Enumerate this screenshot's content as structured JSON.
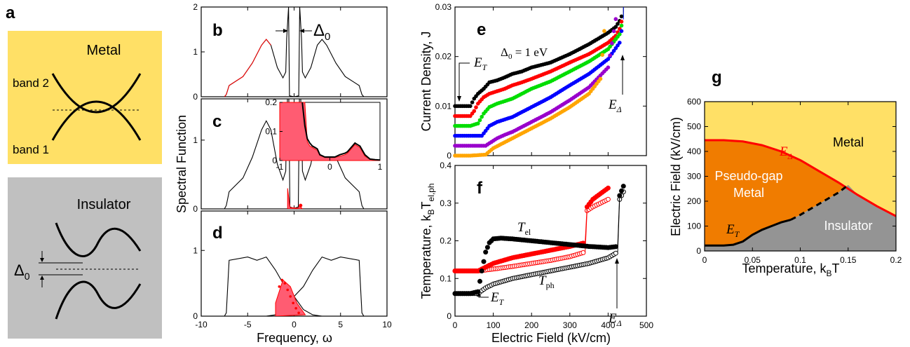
{
  "colors": {
    "metal_bg": "#ffe066",
    "insulator_bg": "#c0c0c0",
    "pseudogap": "#f07c00",
    "pg_insulator": "#949494",
    "red": "#ff0000",
    "green": "#00dd00",
    "blue": "#0000ff",
    "purple": "#9900cc",
    "orange": "#ffa500",
    "shade": "#ff5c72"
  },
  "panel_labels": {
    "a": "a",
    "b": "b",
    "c": "c",
    "d": "d",
    "e": "e",
    "f": "f",
    "g": "g"
  },
  "panel_a": {
    "metal_title": "Metal",
    "band2": "band 2",
    "band1": "band 1",
    "insulator_title": "Insulator",
    "gap_label": "Δ",
    "gap_sub": "0"
  },
  "panels_bcd": {
    "ylabel": "Spectral Function",
    "xlabel": "Frequency, ω",
    "delta_label": "Δ",
    "delta_sub": "0",
    "x_ticks": [
      "-10",
      "-5",
      "0",
      "5",
      "10"
    ],
    "y_ticks_b": [
      "0",
      "1",
      "2"
    ],
    "y_ticks_c": [
      "0",
      "1"
    ],
    "y_ticks_d": [
      "0",
      "1"
    ],
    "inset_y_ticks": [
      "0",
      "0.1",
      "0.2"
    ],
    "inset_x_ticks": [
      "-1",
      "0",
      "1"
    ]
  },
  "panel_e": {
    "ylabel": "Current Density, J",
    "annotation": "Δ",
    "annotation_sub": "0",
    "annotation_rest": " = 1 eV",
    "et_label": "E",
    "et_sub": "T",
    "ed_label": "E",
    "ed_sub": "Δ",
    "y_ticks": [
      "0",
      "0.01",
      "0.02",
      "0.03"
    ]
  },
  "panel_f": {
    "ylabel": "Temperature, k",
    "ylabel_sub": "B",
    "ylabel_rest": "T",
    "ylabel_sub2": "el,ph",
    "xlabel": "Electric Field (kV/cm)",
    "tel_label": "T",
    "tel_sub": "el",
    "tph_label": "T",
    "tph_sub": "ph",
    "et_label": "E",
    "et_sub": "T",
    "ed_label": "E",
    "ed_sub": "Δ",
    "x_ticks": [
      "0",
      "100",
      "200",
      "300",
      "400",
      "500"
    ],
    "y_ticks": [
      "0",
      "0.1",
      "0.2",
      "0.3",
      "0.4"
    ]
  },
  "panel_g": {
    "ylabel": "Electric Field (kV/cm)",
    "xlabel": "Temperature, k",
    "xlabel_sub": "B",
    "xlabel_rest": "T",
    "metal": "Metal",
    "pseudo1": "Pseudo-gap",
    "pseudo2": "Metal",
    "insulator": "Insulator",
    "ed_label": "E",
    "ed_sub": "Δ",
    "et_label": "E",
    "et_sub": "T",
    "x_ticks": [
      "0",
      "0.05",
      "0.1",
      "0.15",
      "0.2"
    ],
    "y_ticks": [
      "0",
      "100",
      "200",
      "300",
      "400",
      "500",
      "600"
    ]
  },
  "chart_data": [
    {
      "panel": "b",
      "type": "line",
      "xlabel": "Frequency, ω",
      "ylabel": "Spectral Function",
      "xlim": [
        -10,
        10
      ],
      "ylim": [
        0,
        2
      ],
      "series": [
        {
          "x": [
            -7.5,
            -7.3,
            -7.0,
            -5.5,
            -4.5,
            -3.5,
            -3.0,
            -2.5,
            -1.8,
            -1.2,
            -0.9,
            -0.8,
            -0.6,
            -0.5,
            0,
            0.5,
            0.6,
            0.8,
            0.9,
            1.2,
            1.8,
            2.5,
            3.0,
            3.5,
            4.5,
            5.5,
            7.0,
            7.3,
            7.5
          ],
          "y": [
            0,
            0.05,
            0.25,
            0.45,
            0.75,
            1.15,
            1.28,
            1.15,
            0.65,
            0.42,
            0.55,
            1.3,
            2.0,
            0.02,
            0,
            0.02,
            2.0,
            1.3,
            0.55,
            0.42,
            0.65,
            1.15,
            1.28,
            1.15,
            0.75,
            0.45,
            0.25,
            0.05,
            0
          ]
        }
      ]
    },
    {
      "panel": "c",
      "type": "line",
      "xlim": [
        -10,
        10
      ],
      "ylim": [
        0,
        1.6
      ],
      "series": [
        {
          "x": [
            -7.5,
            -7.3,
            -7.0,
            -5.5,
            -4.5,
            -3.5,
            -3.0,
            -2.5,
            -1.8,
            -1.2,
            -0.9,
            -0.8,
            -0.6,
            -0.45,
            0,
            0.45,
            0.6,
            0.8,
            0.9,
            1.2,
            1.8,
            2.5,
            3.0,
            3.5,
            4.5,
            5.5,
            7.0,
            7.3,
            7.5
          ],
          "y": [
            0,
            0.05,
            0.25,
            0.45,
            0.75,
            1.15,
            1.28,
            1.15,
            0.65,
            0.42,
            0.55,
            1.3,
            2.0,
            0.03,
            0.01,
            0.03,
            2.0,
            1.3,
            0.55,
            0.42,
            0.65,
            1.15,
            1.28,
            1.15,
            0.75,
            0.45,
            0.25,
            0.05,
            0
          ]
        }
      ],
      "inset": {
        "xlim": [
          -1,
          1
        ],
        "ylim": [
          0,
          0.2
        ],
        "series": [
          {
            "x": [
              -0.55,
              -0.5,
              -0.45,
              -0.4,
              -0.35,
              -0.3,
              -0.25,
              -0.2,
              -0.1,
              0,
              0.1,
              0.2,
              0.3,
              0.35,
              0.4,
              0.45,
              0.5,
              0.55,
              0.6,
              0.7,
              0.8,
              0.9,
              1.0
            ],
            "y": [
              0.2,
              0.12,
              0.075,
              0.06,
              0.05,
              0.045,
              0.04,
              0.02,
              0.012,
              0.012,
              0.012,
              0.02,
              0.025,
              0.03,
              0.04,
              0.05,
              0.06,
              0.055,
              0.05,
              0.02,
              0.005,
              0.003,
              0.002
            ]
          }
        ]
      }
    },
    {
      "panel": "d",
      "type": "line",
      "xlim": [
        -10,
        10
      ],
      "ylim": [
        0,
        1.6
      ],
      "series": [
        {
          "x": [
            -7.5,
            -7.3,
            -7.0,
            -5.0,
            -4.0,
            -3.0,
            -2.0,
            -1.0,
            0,
            1.0,
            2.0,
            3.0,
            4.0,
            5.0,
            7.0,
            7.3,
            7.5
          ],
          "y": [
            0,
            0.05,
            0.85,
            0.9,
            0.85,
            0.9,
            0.7,
            0.55,
            0.4,
            0.55,
            0.7,
            0.9,
            0.85,
            0.9,
            0.85,
            0.05,
            0
          ]
        }
      ]
    },
    {
      "panel": "e",
      "type": "scatter",
      "ylabel": "Current Density, J",
      "xlim": [
        0,
        500
      ],
      "ylim": [
        0,
        0.03
      ],
      "series": [
        {
          "x": [
            0,
            20,
            40,
            50,
            60,
            75,
            90,
            110,
            130,
            150,
            175,
            200,
            250,
            300,
            350,
            400,
            420,
            430,
            440
          ],
          "y": [
            0.01,
            0.01,
            0.01,
            0.0115,
            0.0125,
            0.0135,
            0.0148,
            0.0152,
            0.0158,
            0.0165,
            0.017,
            0.0178,
            0.0188,
            0.0205,
            0.0225,
            0.0248,
            0.026,
            0.0272,
            0.029
          ]
        },
        {
          "x": [
            0,
            20,
            40,
            50,
            60,
            75,
            90,
            110,
            130,
            150,
            175,
            200,
            250,
            300,
            350,
            400,
            420,
            430,
            440
          ],
          "y": [
            0.008,
            0.008,
            0.008,
            0.009,
            0.0105,
            0.0118,
            0.0125,
            0.013,
            0.0135,
            0.0142,
            0.0148,
            0.0155,
            0.017,
            0.0188,
            0.0205,
            0.0228,
            0.0242,
            0.0256,
            0.0285
          ]
        },
        {
          "x": [
            0,
            20,
            40,
            60,
            75,
            90,
            110,
            130,
            150,
            175,
            200,
            250,
            300,
            350,
            400,
            430,
            440
          ],
          "y": [
            0.006,
            0.006,
            0.006,
            0.0065,
            0.0085,
            0.0098,
            0.0105,
            0.011,
            0.0115,
            0.0125,
            0.0135,
            0.015,
            0.017,
            0.019,
            0.0215,
            0.0245,
            0.028
          ]
        },
        {
          "x": [
            0,
            40,
            70,
            80,
            90,
            110,
            150,
            200,
            250,
            300,
            350,
            400,
            430,
            440
          ],
          "y": [
            0.004,
            0.004,
            0.004,
            0.005,
            0.006,
            0.0068,
            0.0078,
            0.0098,
            0.0118,
            0.0142,
            0.0165,
            0.0195,
            0.0228,
            0.0275
          ]
        },
        {
          "x": [
            0,
            40,
            80,
            90,
            110,
            130,
            150,
            200,
            250,
            300,
            350,
            400,
            425
          ],
          "y": [
            0.002,
            0.002,
            0.002,
            0.0025,
            0.0035,
            0.0042,
            0.0048,
            0.0068,
            0.0088,
            0.0112,
            0.0138,
            0.0178,
            0.03
          ]
        },
        {
          "x": [
            0,
            40,
            80,
            100,
            150,
            200,
            250,
            300,
            350,
            380,
            395
          ],
          "y": [
            0,
            0,
            0.0002,
            0.0015,
            0.0035,
            0.0055,
            0.0075,
            0.0098,
            0.0125,
            0.0155,
            0.03
          ]
        }
      ]
    },
    {
      "panel": "f",
      "type": "scatter",
      "xlabel": "Electric Field (kV/cm)",
      "xlim": [
        0,
        500
      ],
      "ylim": [
        0,
        0.4
      ],
      "series": [
        {
          "name": "T_el (black)",
          "x": [
            0,
            40,
            60,
            70,
            80,
            90,
            100,
            120,
            150,
            200,
            250,
            300,
            350,
            400,
            425,
            430,
            440
          ],
          "y": [
            0.06,
            0.06,
            0.065,
            0.12,
            0.17,
            0.195,
            0.205,
            0.207,
            0.205,
            0.2,
            0.195,
            0.19,
            0.185,
            0.182,
            0.185,
            0.32,
            0.345
          ]
        },
        {
          "name": "T_ph (black open)",
          "x": [
            0,
            40,
            60,
            80,
            100,
            150,
            200,
            250,
            300,
            350,
            400,
            425,
            430,
            440
          ],
          "y": [
            0.06,
            0.06,
            0.06,
            0.075,
            0.085,
            0.1,
            0.11,
            0.12,
            0.13,
            0.14,
            0.155,
            0.17,
            0.31,
            0.33
          ]
        },
        {
          "name": "T_el (red)",
          "x": [
            0,
            60,
            100,
            150,
            200,
            250,
            300,
            340,
            345,
            360,
            380,
            400
          ],
          "y": [
            0.12,
            0.12,
            0.14,
            0.155,
            0.165,
            0.175,
            0.185,
            0.195,
            0.29,
            0.31,
            0.325,
            0.34
          ]
        },
        {
          "name": "T_ph (red open)",
          "x": [
            0,
            60,
            100,
            150,
            200,
            250,
            300,
            340,
            345,
            360,
            380,
            400
          ],
          "y": [
            0.12,
            0.12,
            0.125,
            0.132,
            0.14,
            0.148,
            0.158,
            0.17,
            0.28,
            0.29,
            0.3,
            0.31
          ]
        }
      ]
    },
    {
      "panel": "g",
      "type": "area",
      "xlabel": "Temperature, kBT",
      "ylabel": "Electric Field (kV/cm)",
      "xlim": [
        0,
        0.2
      ],
      "ylim": [
        0,
        600
      ],
      "series": [
        {
          "name": "E_Δ",
          "x": [
            0,
            0.02,
            0.04,
            0.06,
            0.08,
            0.1,
            0.12,
            0.14,
            0.16,
            0.18,
            0.2
          ],
          "y": [
            445,
            445,
            440,
            425,
            400,
            365,
            320,
            275,
            225,
            180,
            140
          ]
        },
        {
          "name": "E_T",
          "x": [
            0,
            0.02,
            0.03,
            0.04,
            0.05,
            0.06,
            0.07,
            0.08,
            0.09
          ],
          "y": [
            22,
            22,
            25,
            38,
            65,
            85,
            100,
            115,
            125
          ]
        },
        {
          "x": [
            0.09,
            0.1,
            0.12,
            0.14,
            0.15
          ],
          "y": [
            125,
            145,
            190,
            235,
            265
          ]
        }
      ]
    }
  ]
}
